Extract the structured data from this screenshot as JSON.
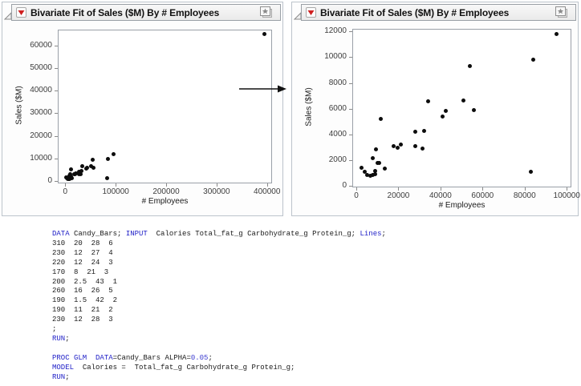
{
  "window": {
    "background": "#ffffff"
  },
  "panels": [
    {
      "title": "Bivariate Fit of Sales ($M) By # Employees",
      "icons": {
        "disclosure": "open-disclosure-triangle",
        "menu": "red-triangle-menu",
        "bookmark": "star-window"
      }
    },
    {
      "title": "Bivariate Fit of Sales ($M) By # Employees",
      "icons": {
        "disclosure": "open-disclosure-triangle",
        "menu": "red-triangle-menu",
        "bookmark": "star-window"
      }
    }
  ],
  "annotation": {
    "arrow": "black right-pointing arrow between the two plots"
  },
  "colors": {
    "accent_red": "#cf1f1f",
    "panel_border": "#bcc3cb",
    "header_border": "#9aa0a6",
    "plot_frame": "#9aa0a8",
    "point": "#0d0d0d"
  },
  "chart_data": [
    {
      "type": "scatter",
      "title": "Bivariate Fit of Sales ($M) By # Employees",
      "xlabel": "# Employees",
      "ylabel": "Sales ($M)",
      "x_ticks": [
        0,
        100000,
        200000,
        300000,
        400000
      ],
      "y_ticks": [
        0,
        10000,
        20000,
        30000,
        40000,
        50000,
        60000
      ],
      "x_range": [
        -14800,
        410000
      ],
      "y_range": [
        -1100,
        67100
      ],
      "grid": false,
      "legend": "none",
      "points": [
        [
          2300,
          1400
        ],
        [
          3900,
          1100
        ],
        [
          5200,
          850
        ],
        [
          6500,
          800
        ],
        [
          7800,
          850
        ],
        [
          8800,
          1150
        ],
        [
          9000,
          950
        ],
        [
          7800,
          2150
        ],
        [
          9300,
          2850
        ],
        [
          10000,
          1800
        ],
        [
          10800,
          1800
        ],
        [
          11700,
          5200
        ],
        [
          13500,
          1350
        ],
        [
          17700,
          3100
        ],
        [
          19600,
          3000
        ],
        [
          21100,
          3250
        ],
        [
          27900,
          4200
        ],
        [
          28100,
          3100
        ],
        [
          31300,
          2900
        ],
        [
          32200,
          4250
        ],
        [
          34000,
          6550
        ],
        [
          41000,
          5400
        ],
        [
          42500,
          5850
        ],
        [
          51000,
          6650
        ],
        [
          54000,
          9300
        ],
        [
          56000,
          5900
        ],
        [
          83000,
          1100
        ],
        [
          84000,
          9800
        ],
        [
          95000,
          11800
        ],
        [
          395000,
          65000
        ]
      ]
    },
    {
      "type": "scatter",
      "title": "Bivariate Fit of Sales ($M) By # Employees",
      "xlabel": "# Employees",
      "ylabel": "Sales ($M)",
      "x_ticks": [
        0,
        20000,
        40000,
        60000,
        80000,
        100000
      ],
      "y_ticks": [
        0,
        2000,
        4000,
        6000,
        8000,
        10000,
        12000
      ],
      "x_range": [
        -1900,
        102200
      ],
      "y_range": [
        -100,
        12200
      ],
      "grid": false,
      "legend": "none",
      "points": [
        [
          2300,
          1400
        ],
        [
          3900,
          1100
        ],
        [
          5200,
          850
        ],
        [
          6500,
          800
        ],
        [
          7800,
          850
        ],
        [
          8800,
          1150
        ],
        [
          9000,
          950
        ],
        [
          7800,
          2150
        ],
        [
          9300,
          2850
        ],
        [
          10000,
          1800
        ],
        [
          10800,
          1800
        ],
        [
          11700,
          5200
        ],
        [
          13500,
          1350
        ],
        [
          17700,
          3100
        ],
        [
          19600,
          3000
        ],
        [
          21100,
          3250
        ],
        [
          27900,
          4200
        ],
        [
          28100,
          3100
        ],
        [
          31300,
          2900
        ],
        [
          32200,
          4250
        ],
        [
          34000,
          6550
        ],
        [
          41000,
          5400
        ],
        [
          42500,
          5850
        ],
        [
          51000,
          6650
        ],
        [
          54000,
          9300
        ],
        [
          56000,
          5900
        ],
        [
          83000,
          1100
        ],
        [
          84000,
          9800
        ],
        [
          95000,
          11800
        ]
      ]
    }
  ],
  "code": {
    "colors": {
      "kw": "#2323c8",
      "num": "#3b3bd0",
      "p": "#1a1a1a"
    },
    "lines": [
      [
        {
          "c": "kw",
          "t": "DATA"
        },
        {
          "c": "p",
          "t": " Candy_Bars; "
        },
        {
          "c": "kw",
          "t": "INPUT"
        },
        {
          "c": "p",
          "t": "  Calories Total_fat_g Carbohydrate_g Protein_g; "
        },
        {
          "c": "kw",
          "t": "Lines"
        },
        {
          "c": "p",
          "t": ";"
        }
      ],
      [
        {
          "c": "p",
          "t": "310  20  28  6"
        }
      ],
      [
        {
          "c": "p",
          "t": "230  12  27  4"
        }
      ],
      [
        {
          "c": "p",
          "t": "220  12  24  3"
        }
      ],
      [
        {
          "c": "p",
          "t": "170  8  21  3"
        }
      ],
      [
        {
          "c": "p",
          "t": "200  2.5  43  1"
        }
      ],
      [
        {
          "c": "p",
          "t": "260  16  26  5"
        }
      ],
      [
        {
          "c": "p",
          "t": "190  1.5  42  2"
        }
      ],
      [
        {
          "c": "p",
          "t": "190  11  21  2"
        }
      ],
      [
        {
          "c": "p",
          "t": "230  12  28  3"
        }
      ],
      [
        {
          "c": "p",
          "t": ";"
        }
      ],
      [
        {
          "c": "kw",
          "t": "RUN"
        },
        {
          "c": "p",
          "t": ";"
        }
      ],
      [],
      [
        {
          "c": "kw",
          "t": "PROC GLM"
        },
        {
          "c": "p",
          "t": "  "
        },
        {
          "c": "kw",
          "t": "DATA"
        },
        {
          "c": "p",
          "t": "=Candy_Bars ALPHA="
        },
        {
          "c": "num",
          "t": "0.05"
        },
        {
          "c": "p",
          "t": ";"
        }
      ],
      [
        {
          "c": "kw",
          "t": "MODEL"
        },
        {
          "c": "p",
          "t": "  Calories =  Total_fat_g Carbohydrate_g Protein_g;"
        }
      ],
      [
        {
          "c": "kw",
          "t": "RUN"
        },
        {
          "c": "p",
          "t": ";"
        }
      ]
    ]
  }
}
